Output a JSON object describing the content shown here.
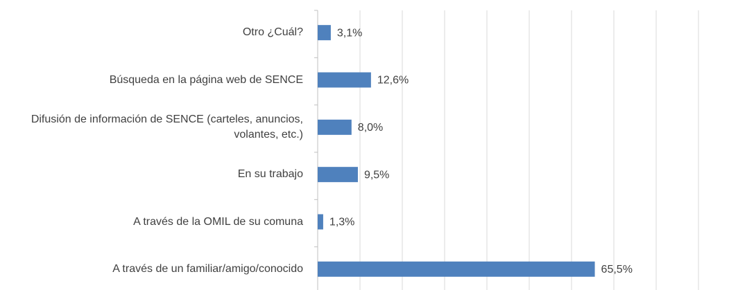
{
  "chart_data": {
    "type": "bar",
    "orientation": "horizontal",
    "categories": [
      "Otro ¿Cuál?",
      "Búsqueda en la página web de SENCE",
      "Difusión de información de SENCE (carteles, anuncios, volantes, etc.)",
      "En su trabajo",
      "A través de la OMIL de su comuna",
      "A través de un familiar/amigo/conocido"
    ],
    "values": [
      3.1,
      12.6,
      8.0,
      9.5,
      1.3,
      65.5
    ],
    "value_labels": [
      "3,1%",
      "12,6%",
      "8,0%",
      "9,5%",
      "1,3%",
      "65,5%"
    ],
    "color": "#4f81bd",
    "xlim": [
      0,
      90
    ],
    "xticks": [
      0,
      10,
      20,
      30,
      40,
      50,
      60,
      70,
      80,
      90
    ],
    "grid": true
  }
}
